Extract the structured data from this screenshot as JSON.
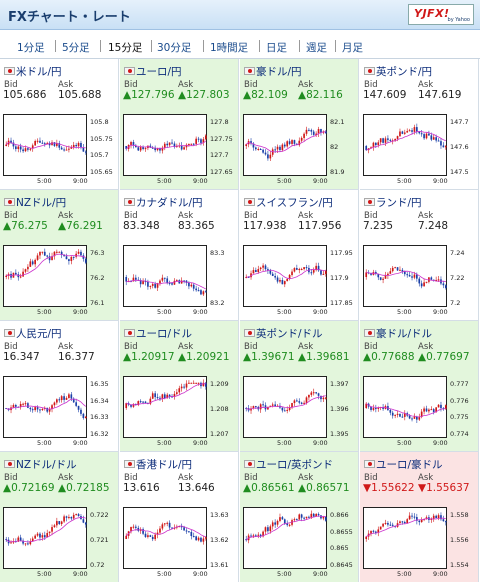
{
  "header": {
    "title": "FXチャート・レート",
    "logo_text": "YJFX!",
    "logo_sub": "by Yahoo"
  },
  "tabs": [
    "1分足",
    "5分足",
    "15分足",
    "30分足",
    "1時間足",
    "日足",
    "週足",
    "月足"
  ],
  "selected_tab": "15分足",
  "labels": {
    "bid": "Bid",
    "ask": "Ask"
  },
  "colors": {
    "up": "#1f8c1f",
    "down": "#d01818",
    "up_bg": "#e3f6dc",
    "down_bg": "#fbe3e3",
    "candle_up": "#d01818",
    "candle_down": "#1a3fa8",
    "ma_line": "#cc33cc"
  },
  "pairs": [
    {
      "name": "米ドル/円",
      "flag": "flag-us-icon",
      "bid": "105.686",
      "ask": "105.688",
      "trend": "none",
      "yticks": [
        "105.8",
        "105.75",
        "105.7",
        "105.65"
      ],
      "xticks": [
        "5:00",
        "9:00"
      ]
    },
    {
      "name": "ユーロ/円",
      "flag": "flag-eu-icon",
      "bid": "▲127.796",
      "ask": "▲127.803",
      "trend": "up",
      "yticks": [
        "127.8",
        "127.75",
        "127.7",
        "127.65"
      ],
      "xticks": [
        "5:00",
        "9:00"
      ]
    },
    {
      "name": "豪ドル/円",
      "flag": "flag-au-icon",
      "bid": "▲82.109",
      "ask": "▲82.116",
      "trend": "up",
      "yticks": [
        "82.1",
        "82",
        "81.9"
      ],
      "xticks": [
        "5:00",
        "9:00"
      ]
    },
    {
      "name": "英ポンド/円",
      "flag": "flag-gb-icon",
      "bid": "147.609",
      "ask": "147.619",
      "trend": "none",
      "yticks": [
        "147.7",
        "147.6",
        "147.5"
      ],
      "xticks": [
        "5:00",
        "9:00"
      ]
    },
    {
      "name": "NZドル/円",
      "flag": "flag-nz-icon",
      "bid": "▲76.275",
      "ask": "▲76.291",
      "trend": "up",
      "yticks": [
        "76.3",
        "76.2",
        "76.1"
      ],
      "xticks": [
        "5:00",
        "9:00"
      ]
    },
    {
      "name": "カナダドル/円",
      "flag": "flag-ca-icon",
      "bid": "83.348",
      "ask": "83.365",
      "trend": "none",
      "yticks": [
        "83.3",
        "83.2"
      ],
      "xticks": [
        "5:00",
        "9:00"
      ]
    },
    {
      "name": "スイスフラン/円",
      "flag": "flag-ch-icon",
      "bid": "117.938",
      "ask": "117.956",
      "trend": "none",
      "yticks": [
        "117.95",
        "117.9",
        "117.85"
      ],
      "xticks": [
        "5:00",
        "9:00"
      ]
    },
    {
      "name": "ランド/円",
      "flag": "flag-za-icon",
      "bid": "7.235",
      "ask": "7.248",
      "trend": "none",
      "yticks": [
        "7.24",
        "7.22",
        "7.2"
      ],
      "xticks": [
        "5:00",
        "9:00"
      ]
    },
    {
      "name": "人民元/円",
      "flag": "flag-cn-icon",
      "bid": "16.347",
      "ask": "16.377",
      "trend": "none",
      "yticks": [
        "16.35",
        "16.34",
        "16.33",
        "16.32"
      ],
      "xticks": [
        "5:00",
        "9:00"
      ]
    },
    {
      "name": "ユーロ/ドル",
      "flag": "flag-eu-icon",
      "bid": "▲1.20917",
      "ask": "▲1.20921",
      "trend": "up",
      "yticks": [
        "1.209",
        "1.208",
        "1.207"
      ],
      "xticks": [
        "5:00",
        "9:00"
      ]
    },
    {
      "name": "英ポンド/ドル",
      "flag": "flag-gb-icon",
      "bid": "▲1.39671",
      "ask": "▲1.39681",
      "trend": "up",
      "yticks": [
        "1.397",
        "1.396",
        "1.395"
      ],
      "xticks": [
        "5:00",
        "9:00"
      ]
    },
    {
      "name": "豪ドル/ドル",
      "flag": "flag-au-icon",
      "bid": "▲0.77688",
      "ask": "▲0.77697",
      "trend": "up",
      "yticks": [
        "0.777",
        "0.776",
        "0.775",
        "0.774"
      ],
      "xticks": [
        "5:00",
        "9:00"
      ]
    },
    {
      "name": "NZドル/ドル",
      "flag": "flag-nz-icon",
      "bid": "▲0.72169",
      "ask": "▲0.72185",
      "trend": "up",
      "yticks": [
        "0.722",
        "0.721",
        "0.72"
      ],
      "xticks": [
        "5:00",
        "9:00"
      ]
    },
    {
      "name": "香港ドル/円",
      "flag": "flag-hk-icon",
      "bid": "13.616",
      "ask": "13.646",
      "trend": "none",
      "yticks": [
        "13.63",
        "13.62",
        "13.61"
      ],
      "xticks": [
        "5:00",
        "9:00"
      ]
    },
    {
      "name": "ユーロ/英ポンド",
      "flag": "flag-eu-icon",
      "bid": "▲0.86561",
      "ask": "▲0.86571",
      "trend": "up",
      "yticks": [
        "0.866",
        "0.8655",
        "0.865",
        "0.8645"
      ],
      "xticks": [
        "5:00",
        "9:00"
      ]
    },
    {
      "name": "ユーロ/豪ドル",
      "flag": "flag-eu-icon",
      "bid": "▼1.55622",
      "ask": "▼1.55637",
      "trend": "down",
      "yticks": [
        "1.558",
        "1.556",
        "1.554"
      ],
      "xticks": [
        "5:00",
        "9:00"
      ]
    }
  ]
}
